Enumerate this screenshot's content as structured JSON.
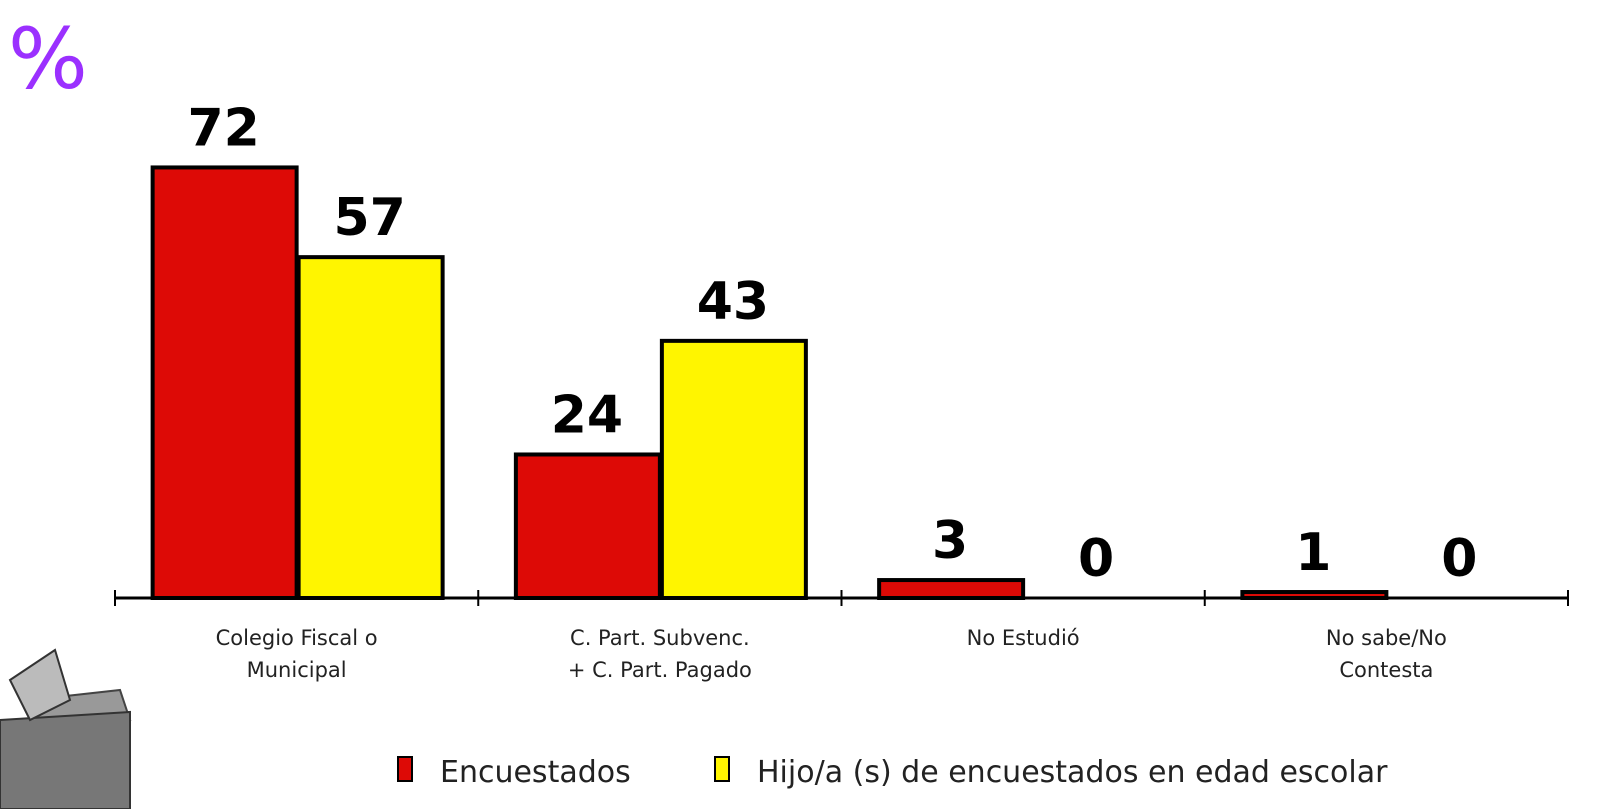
{
  "chart_data": {
    "type": "bar",
    "y_label": "%",
    "categories": [
      "Colegio Fiscal o Municipal",
      "C. Part. Subvenc. + C. Part. Pagado",
      "No Estudió",
      "No sabe/No Contesta"
    ],
    "series": [
      {
        "name": "Encuestados",
        "color": "#dd0a06",
        "values": [
          72,
          24,
          3,
          1
        ]
      },
      {
        "name": "Hijo/a (s) de encuestados en edad escolar",
        "color": "#fff500",
        "values": [
          57,
          43,
          0,
          0
        ]
      }
    ],
    "ylim": [
      0,
      100
    ],
    "grid": false
  }
}
